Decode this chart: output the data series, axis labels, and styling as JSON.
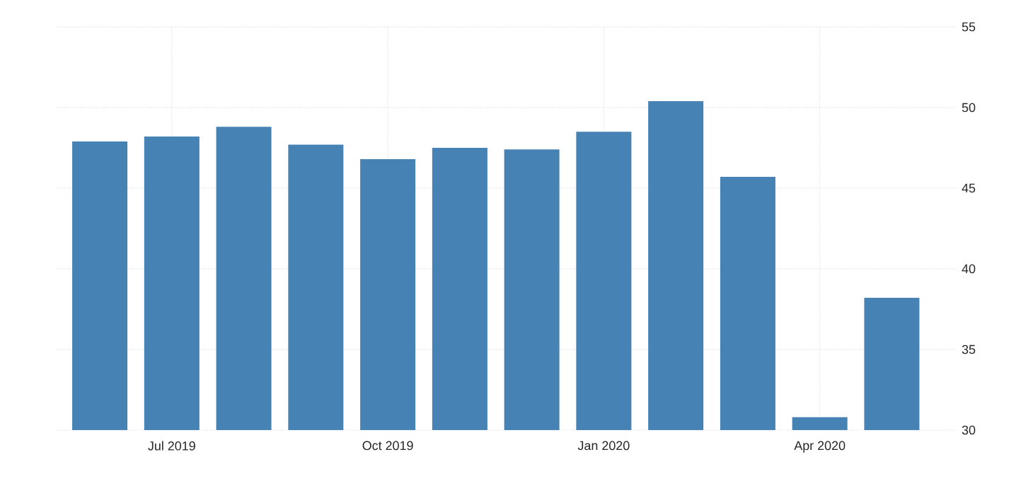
{
  "chart_data": {
    "type": "bar",
    "categories": [
      null,
      "Jul 2019",
      null,
      null,
      "Oct 2019",
      null,
      null,
      "Jan 2020",
      null,
      null,
      "Apr 2020",
      null
    ],
    "values": [
      47.9,
      48.2,
      48.8,
      47.7,
      46.8,
      47.5,
      47.4,
      48.5,
      50.4,
      45.7,
      30.8,
      38.2
    ],
    "color": "#4682b4",
    "ylim": [
      30,
      55
    ],
    "yticks": [
      30,
      35,
      40,
      45,
      50,
      55
    ],
    "grid": true
  }
}
